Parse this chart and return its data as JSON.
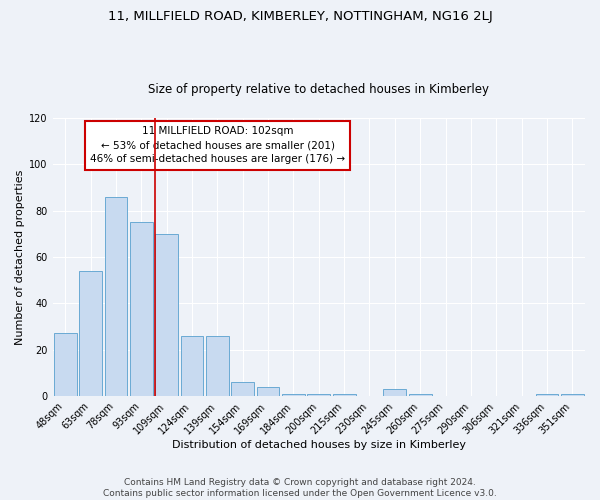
{
  "title": "11, MILLFIELD ROAD, KIMBERLEY, NOTTINGHAM, NG16 2LJ",
  "subtitle": "Size of property relative to detached houses in Kimberley",
  "xlabel": "Distribution of detached houses by size in Kimberley",
  "ylabel": "Number of detached properties",
  "bar_labels": [
    "48sqm",
    "63sqm",
    "78sqm",
    "93sqm",
    "109sqm",
    "124sqm",
    "139sqm",
    "154sqm",
    "169sqm",
    "184sqm",
    "200sqm",
    "215sqm",
    "230sqm",
    "245sqm",
    "260sqm",
    "275sqm",
    "290sqm",
    "306sqm",
    "321sqm",
    "336sqm",
    "351sqm"
  ],
  "bar_values": [
    27,
    54,
    86,
    75,
    70,
    26,
    26,
    6,
    4,
    1,
    1,
    1,
    0,
    3,
    1,
    0,
    0,
    0,
    0,
    1,
    1
  ],
  "bar_color": "#c8daf0",
  "bar_edge_color": "#6aaad4",
  "ylim": [
    0,
    120
  ],
  "yticks": [
    0,
    20,
    40,
    60,
    80,
    100,
    120
  ],
  "property_line_color": "#cc0000",
  "property_line_bar_index": 4,
  "annotation_title": "11 MILLFIELD ROAD: 102sqm",
  "annotation_line1": "← 53% of detached houses are smaller (201)",
  "annotation_line2": "46% of semi-detached houses are larger (176) →",
  "annotation_box_color": "#ffffff",
  "annotation_box_edge": "#cc0000",
  "footer_line1": "Contains HM Land Registry data © Crown copyright and database right 2024.",
  "footer_line2": "Contains public sector information licensed under the Open Government Licence v3.0.",
  "background_color": "#eef2f8",
  "grid_color": "#ffffff",
  "title_fontsize": 9.5,
  "subtitle_fontsize": 8.5,
  "axis_label_fontsize": 8,
  "tick_fontsize": 7,
  "footer_fontsize": 6.5
}
